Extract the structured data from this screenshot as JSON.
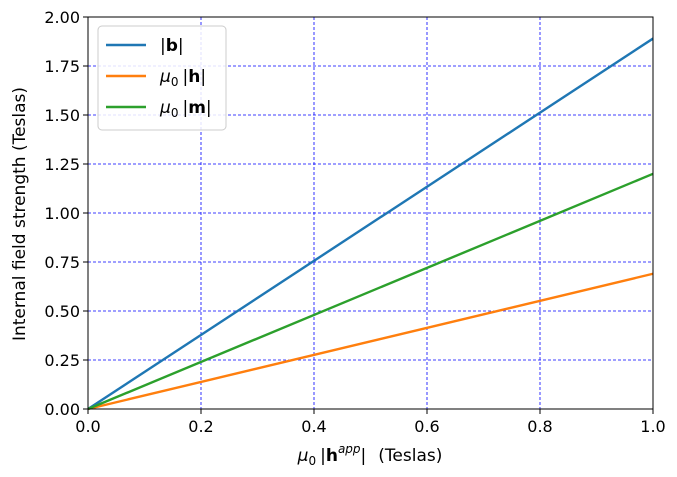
{
  "chart_data": {
    "type": "line",
    "title": "",
    "xlabel": {
      "mu": "μ",
      "sub": "0",
      "bar_open": "|",
      "vec": "h",
      "sup": "app",
      "bar_close": "|",
      "units": "(Teslas)"
    },
    "ylabel": "Internal field strength (Teslas)",
    "xlim": [
      0.0,
      1.0
    ],
    "ylim": [
      0.0,
      2.0
    ],
    "xticks": [
      "0.0",
      "0.2",
      "0.4",
      "0.6",
      "0.8",
      "1.0"
    ],
    "yticks": [
      "0.00",
      "0.25",
      "0.50",
      "0.75",
      "1.00",
      "1.25",
      "1.50",
      "1.75",
      "2.00"
    ],
    "grid": true,
    "legend_position": "top-left",
    "series": [
      {
        "name": "|b|",
        "legend": {
          "prefix": "",
          "sub": "",
          "bar_open": "|",
          "vec": "b",
          "bar_close": "|"
        },
        "color": "#1f77b4",
        "x": [
          0.0,
          1.0
        ],
        "y": [
          0.0,
          1.89
        ]
      },
      {
        "name": "μ0 |h|",
        "legend": {
          "prefix": "μ",
          "sub": "0",
          "bar_open": "|",
          "vec": "h",
          "bar_close": "|"
        },
        "color": "#ff7f0e",
        "x": [
          0.0,
          1.0
        ],
        "y": [
          0.0,
          0.69
        ]
      },
      {
        "name": "μ0 |m|",
        "legend": {
          "prefix": "μ",
          "sub": "0",
          "bar_open": "|",
          "vec": "m",
          "bar_close": "|"
        },
        "color": "#2ca02c",
        "x": [
          0.0,
          1.0
        ],
        "y": [
          0.0,
          1.2
        ]
      }
    ]
  }
}
